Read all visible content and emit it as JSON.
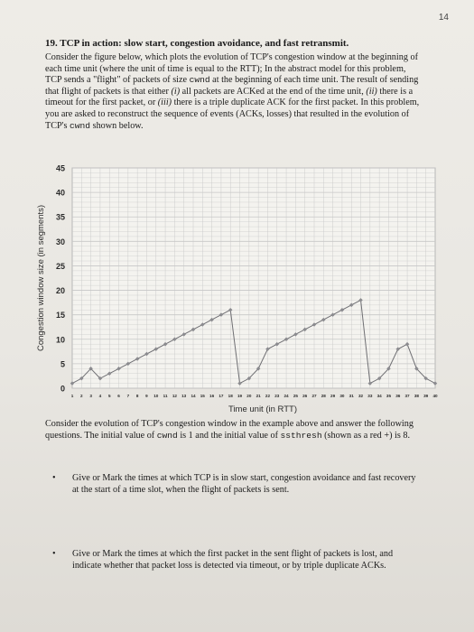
{
  "page_number": "14",
  "question": {
    "title": "19. TCP in action: slow start, congestion avoidance, and fast retransmit.",
    "intro_parts": [
      "Consider the figure below, which plots the evolution of TCP's congestion window at the beginning of each time unit (where the unit of time is equal to the RTT); In the abstract model for this problem, TCP sends a \"flight\" of packets of size ",
      "cwnd",
      " at the beginning of each time unit. The result of sending that flight of packets is that either ",
      "(i)",
      " all packets are ACKed at the end of the time unit, ",
      "(ii)",
      " there is a timeout for the first packet, or ",
      "(iii)",
      " there is a triple duplicate ACK for the first packet. In this problem, you are asked to reconstruct the sequence of events (ACKs, losses) that resulted in the evolution of TCP's ",
      "cwnd",
      " shown below."
    ],
    "after_parts": [
      "Consider the evolution of TCP's congestion window in the example above and answer the following questions. The initial value of ",
      "cwnd",
      " is 1 and the initial value of ",
      "ssthresh",
      " (shown as a red +) is 8."
    ],
    "bullets": [
      "Give or Mark the times at which TCP is in slow start, congestion avoidance and fast recovery at the start of a time slot, when the flight of packets is sent.",
      "Give or Mark the times at which the first packet in the sent flight of packets is lost, and indicate whether that packet loss is detected via timeout, or by triple duplicate ACKs."
    ],
    "bullet_symbol": "•"
  },
  "chart_data": {
    "type": "line",
    "xlabel": "Time unit (in RTT)",
    "ylabel": "Congestion window size (in segments)",
    "xlim": [
      1,
      40
    ],
    "ylim": [
      0,
      45
    ],
    "y_ticks": [
      0,
      5,
      10,
      15,
      20,
      25,
      30,
      35,
      40,
      45
    ],
    "x_ticks": [
      1,
      2,
      3,
      4,
      5,
      6,
      7,
      8,
      9,
      10,
      11,
      12,
      13,
      14,
      15,
      16,
      17,
      18,
      19,
      20,
      21,
      22,
      23,
      24,
      25,
      26,
      27,
      28,
      29,
      30,
      31,
      32,
      33,
      34,
      35,
      36,
      37,
      38,
      39,
      40
    ],
    "grid": true,
    "series": [
      {
        "x": [
          1,
          2,
          3,
          4,
          5,
          6,
          7,
          8,
          9,
          10,
          11,
          12,
          13,
          14,
          15,
          16,
          17,
          18,
          19,
          20,
          21,
          22,
          23,
          24,
          25,
          26,
          27,
          28,
          29,
          30,
          31,
          32,
          33,
          34,
          35,
          36,
          37,
          38,
          39,
          40
        ],
        "y": [
          1,
          2,
          4,
          2,
          3,
          4,
          5,
          6,
          7,
          8,
          9,
          10,
          11,
          12,
          13,
          14,
          15,
          16,
          1,
          2,
          4,
          8,
          9,
          10,
          11,
          12,
          13,
          14,
          15,
          16,
          17,
          18,
          1,
          2,
          4,
          8,
          9,
          4,
          2,
          1
        ]
      }
    ],
    "colors": {
      "line": "#6f6f73",
      "marker": "#8b8b8f",
      "grid": "#c7c7c7",
      "text": "#2a2a2a"
    }
  }
}
